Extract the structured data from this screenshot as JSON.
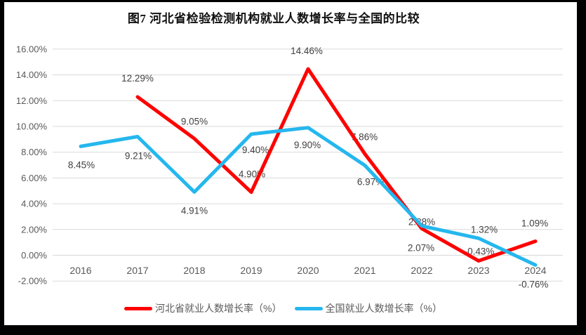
{
  "chart_data": {
    "type": "line",
    "title": "图7 河北省检验检测机构就业人数增长率与全国的比较",
    "categories": [
      "2016",
      "2017",
      "2018",
      "2019",
      "2020",
      "2021",
      "2022",
      "2023",
      "2024"
    ],
    "series": [
      {
        "name": "河北省就业人数增长率（%）",
        "color": "#FF0000",
        "values": [
          null,
          12.29,
          9.05,
          4.9,
          14.46,
          7.86,
          2.07,
          -0.43,
          1.09
        ],
        "labels": [
          null,
          "12.29%",
          "9.05%",
          "4.90%",
          "14.46%",
          "7.86%",
          "2.07%",
          "-0.43%",
          "1.09%"
        ],
        "label_offsets": [
          null,
          [
            0,
            -27
          ],
          [
            0,
            -25
          ],
          [
            1,
            -26
          ],
          [
            -2,
            -26
          ],
          [
            -1,
            -25
          ],
          [
            -1,
            27
          ],
          [
            1,
            -14
          ],
          [
            -1,
            -26
          ]
        ]
      },
      {
        "name": "全国就业人数增长率（%）",
        "color": "#25B7EE",
        "values": [
          8.45,
          9.21,
          4.91,
          9.4,
          9.9,
          6.97,
          2.28,
          1.32,
          -0.76
        ],
        "labels": [
          "8.45%",
          "9.21%",
          "4.91%",
          "9.40%",
          "9.90%",
          "6.97%",
          "2.28%",
          "1.32%",
          "-0.76%"
        ],
        "label_offsets": [
          [
            1,
            26
          ],
          [
            1,
            27
          ],
          [
            0,
            26
          ],
          [
            6,
            22
          ],
          [
            -1,
            24
          ],
          [
            8,
            23
          ],
          [
            0,
            -6
          ],
          [
            8,
            -13
          ],
          [
            -3,
            27
          ]
        ]
      }
    ],
    "xlabel": "",
    "ylabel": "",
    "ylim": [
      -2,
      16
    ],
    "ytick_step": 2,
    "ytick_labels": [
      "16.00%",
      "14.00%",
      "12.00%",
      "10.00%",
      "8.00%",
      "6.00%",
      "4.00%",
      "2.00%",
      "0.00%",
      "-2.00%"
    ],
    "grid": true,
    "legend_position": "bottom",
    "colors": {
      "gridline": "#D9D9D9",
      "axis_text": "#595959",
      "data_label_text": "#404040"
    }
  }
}
